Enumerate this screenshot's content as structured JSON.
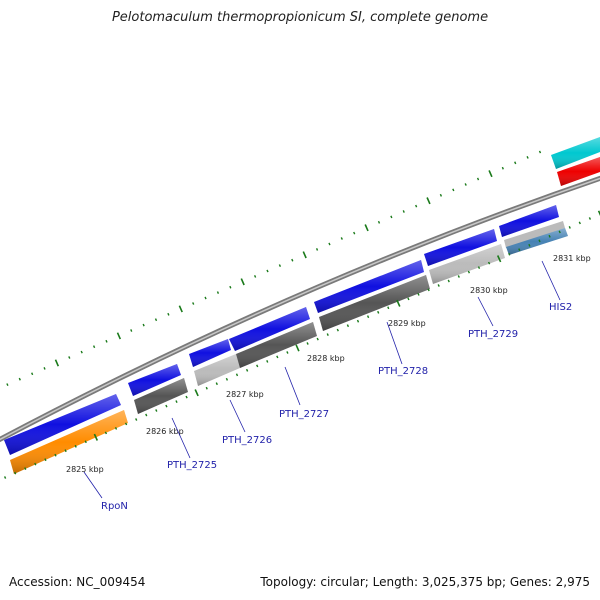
{
  "title": "Pelotomaculum thermopropionicum SI, complete genome",
  "footer": {
    "accession": "Accession: NC_009454",
    "stats": "Topology: circular; Length: 3,025,375 bp; Genes: 2,975"
  },
  "map": {
    "kbp_ticks": [
      "2825 kbp",
      "2826 kbp",
      "2827 kbp",
      "2828 kbp",
      "2829 kbp",
      "2830 kbp",
      "2831 kbp"
    ],
    "gene_labels": [
      "RpoN",
      "PTH_2725",
      "PTH_2726",
      "PTH_2727",
      "PTH_2728",
      "PTH_2729",
      "HIS2"
    ],
    "colors": {
      "forward_gene": "#1010e0",
      "cds_dark": "#555555",
      "cds_light": "#bbbbbb",
      "rpon": "#ff8c00",
      "his2": "#4682b4",
      "cyan": "#00c8d0",
      "red": "#ee0000",
      "tick": "#1a7a1a",
      "backbone": "#808080"
    }
  }
}
